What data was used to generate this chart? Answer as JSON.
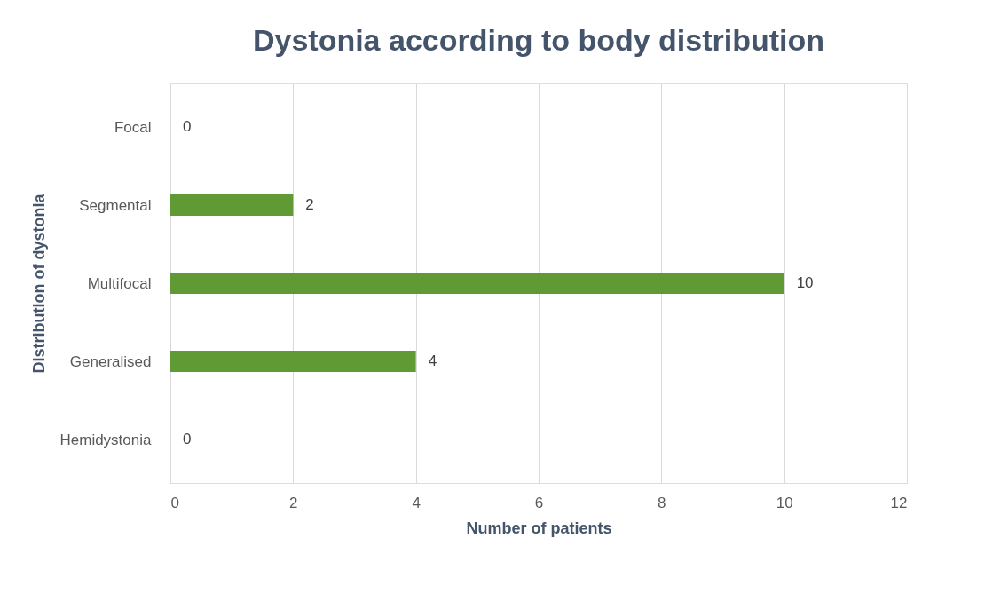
{
  "chart_data": {
    "type": "bar",
    "orientation": "horizontal",
    "title": "Dystonia according to body distribution",
    "xlabel": "Number of patients",
    "ylabel": "Distribution of dystonia",
    "categories": [
      "Focal",
      "Segmental",
      "Multifocal",
      "Generalised",
      "Hemidystonia"
    ],
    "values": [
      0,
      2,
      10,
      4,
      0
    ],
    "color": "#5f9a35",
    "xlim": [
      0,
      12
    ],
    "xticks": [
      0,
      2,
      4,
      6,
      8,
      10,
      12
    ],
    "grid": "x",
    "data_labels": true
  }
}
